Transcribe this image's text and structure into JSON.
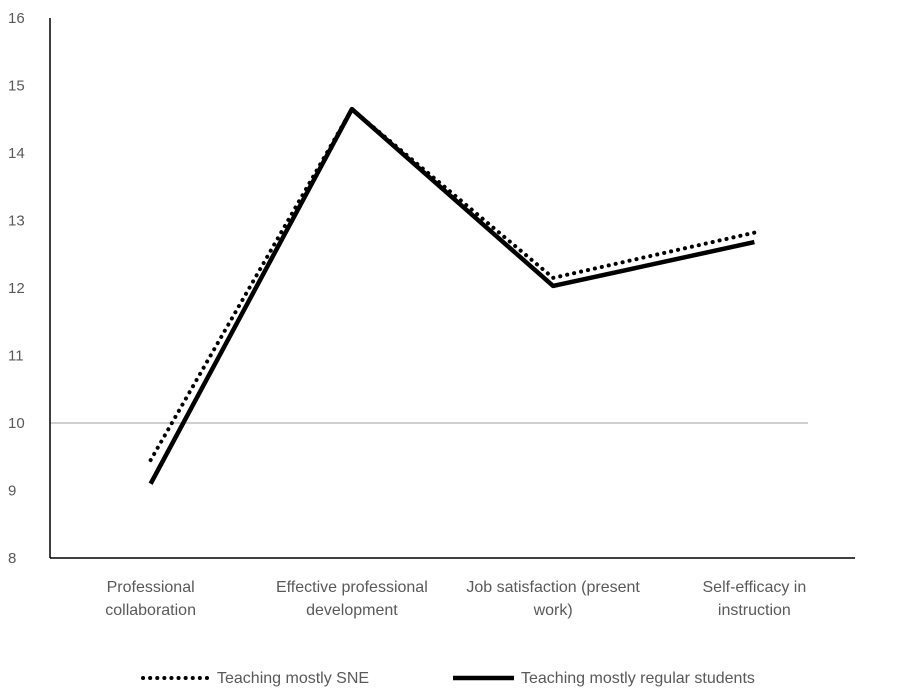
{
  "chart_data": {
    "type": "line",
    "categories": [
      [
        "Professional",
        "collaboration"
      ],
      [
        "Effective professional",
        "development"
      ],
      [
        "Job satisfaction (present",
        "work)"
      ],
      [
        "Self-efficacy in",
        "instruction"
      ]
    ],
    "series": [
      {
        "name": "Teaching mostly SNE",
        "values": [
          9.45,
          14.65,
          12.15,
          12.82
        ],
        "style": "dotted",
        "color": "#000000"
      },
      {
        "name": "Teaching mostly regular students",
        "values": [
          9.1,
          14.65,
          12.03,
          12.68
        ],
        "style": "solid",
        "color": "#000000"
      }
    ],
    "reference_line": 10,
    "ylim": [
      8,
      16
    ],
    "yticks": [
      8,
      9,
      10,
      11,
      12,
      13,
      14,
      15,
      16
    ],
    "grid": false,
    "legend_position": "bottom"
  }
}
